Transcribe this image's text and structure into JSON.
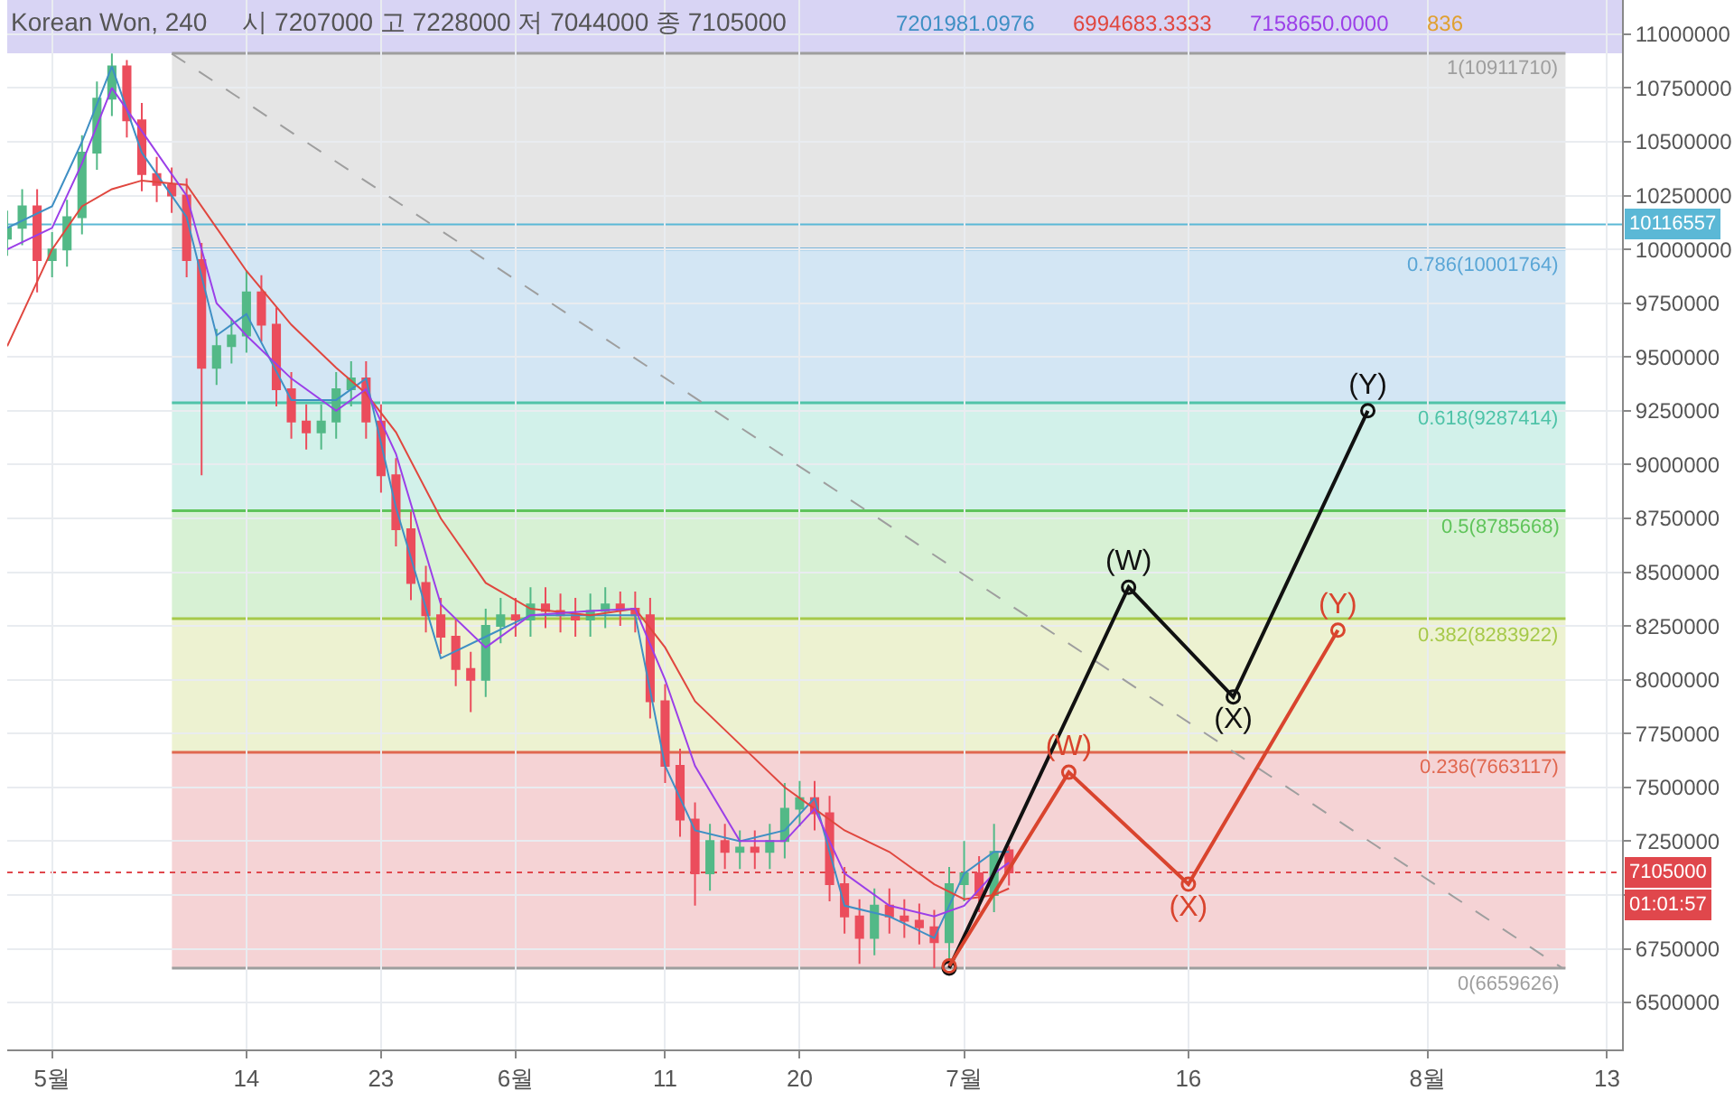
{
  "chart_data": {
    "type": "candlestick",
    "title": "Korean Won, 240",
    "subtitle": "시 7207000 고 7228000 저 7044000 종 7105000",
    "xlim": [
      "--04-28",
      "--08-14"
    ],
    "xticks": [
      {
        "value": "--05-01",
        "label": "5월"
      },
      {
        "value": "--05-14",
        "label": "14"
      },
      {
        "value": "--05-23",
        "label": "23"
      },
      {
        "value": "--06-01",
        "label": "6월"
      },
      {
        "value": "--06-11",
        "label": "11"
      },
      {
        "value": "--06-20",
        "label": "20"
      },
      {
        "value": "--07-01",
        "label": "7월"
      },
      {
        "value": "--07-16",
        "label": "16"
      },
      {
        "value": "--08-01",
        "label": "8월"
      },
      {
        "value": "--08-13",
        "label": "13"
      }
    ],
    "ylim": [
      6282000,
      11159000
    ],
    "yticks": [
      6500000,
      6750000,
      {
        "value": 7000000,
        "label": null
      },
      7250000,
      7500000,
      7750000,
      8000000,
      8250000,
      8500000,
      8750000,
      9000000,
      9250000,
      9500000,
      9750000,
      10000000,
      10250000,
      10500000,
      10750000,
      11000000
    ],
    "grid": true,
    "legend": "top",
    "marker": "circle",
    "series": [
      {
        "type": "line",
        "name": "7201981.0976",
        "color": "#3f8fc4",
        "marker": "none",
        "x": [
          "--04-28",
          "--05-01",
          "--05-03",
          "--05-05",
          "--05-07",
          "--05-10",
          "--05-12",
          "--05-14",
          "--05-17",
          "--05-20",
          "--05-22",
          "--05-24",
          "--05-27",
          "--05-30",
          "--06-02",
          "--06-06",
          "--06-09",
          "--06-11",
          "--06-13",
          "--06-16",
          "--06-19",
          "--06-21",
          "--06-23",
          "--06-26",
          "--06-29",
          "--07-01",
          "--07-03",
          "--07-04"
        ],
        "values": [
          10100000,
          10200000,
          10500000,
          10850000,
          10450000,
          10150000,
          9600000,
          9700000,
          9300000,
          9300000,
          9400000,
          8800000,
          8100000,
          8200000,
          8300000,
          8300000,
          8300000,
          7600000,
          7300000,
          7250000,
          7300000,
          7450000,
          6950000,
          6900000,
          6800000,
          7100000,
          7200000,
          7200000
        ]
      },
      {
        "type": "line",
        "name": "6994683.3333",
        "color": "#e0473f",
        "marker": "none",
        "x": [
          "--04-28",
          "--05-01",
          "--05-03",
          "--05-05",
          "--05-07",
          "--05-10",
          "--05-12",
          "--05-14",
          "--05-17",
          "--05-20",
          "--05-22",
          "--05-24",
          "--05-27",
          "--05-30",
          "--06-02",
          "--06-06",
          "--06-09",
          "--06-11",
          "--06-13",
          "--06-16",
          "--06-19",
          "--06-21",
          "--06-23",
          "--06-26",
          "--06-29",
          "--07-01",
          "--07-03",
          "--07-04"
        ],
        "values": [
          9550000,
          10000000,
          10200000,
          10280000,
          10320000,
          10300000,
          10100000,
          9900000,
          9650000,
          9450000,
          9330000,
          9150000,
          8750000,
          8450000,
          8330000,
          8300000,
          8330000,
          8150000,
          7900000,
          7700000,
          7500000,
          7400000,
          7300000,
          7200000,
          7050000,
          6980000,
          7000000,
          7030000
        ]
      },
      {
        "type": "line",
        "name": "7158650.0000",
        "color": "#9b3fe8",
        "marker": "none",
        "x": [
          "--04-28",
          "--05-01",
          "--05-03",
          "--05-05",
          "--05-07",
          "--05-10",
          "--05-12",
          "--05-14",
          "--05-17",
          "--05-20",
          "--05-22",
          "--05-24",
          "--05-27",
          "--05-30",
          "--06-02",
          "--06-06",
          "--06-09",
          "--06-11",
          "--06-13",
          "--06-16",
          "--06-19",
          "--06-21",
          "--06-23",
          "--06-26",
          "--06-29",
          "--07-01",
          "--07-03",
          "--07-04"
        ],
        "values": [
          10000000,
          10100000,
          10400000,
          10750000,
          10550000,
          10250000,
          9750000,
          9600000,
          9400000,
          9250000,
          9350000,
          9050000,
          8350000,
          8150000,
          8300000,
          8320000,
          8330000,
          8000000,
          7600000,
          7250000,
          7250000,
          7400000,
          7100000,
          6950000,
          6900000,
          6950000,
          7100000,
          7150000
        ]
      },
      {
        "type": "line",
        "color": "#9e9e9e",
        "marker": "none",
        "line_style": "dashed",
        "x": [
          "--05-09",
          "--08-10"
        ],
        "values": [
          10910000,
          6660000
        ]
      },
      {
        "type": "line",
        "color": "#111111",
        "x": [
          "--06-30",
          "--07-12",
          "--07-19",
          "--07-28"
        ],
        "values": [
          6660000,
          8430000,
          7920000,
          9250000
        ],
        "value_labels": [
          null,
          "(W)",
          "(X)",
          "(Y)"
        ]
      },
      {
        "type": "line",
        "color": "#d9442e",
        "x": [
          "--06-30",
          "--07-08",
          "--07-16",
          "--07-26"
        ],
        "values": [
          6670000,
          7570000,
          7050000,
          8230000
        ],
        "value_labels": [
          null,
          "(W)",
          "(X)",
          "(Y)"
        ]
      },
      {
        "x": [
          "--04-28",
          "--04-29",
          "--04-30",
          "--05-01",
          "--05-02",
          "--05-03",
          "--05-04",
          "--05-05",
          "--05-06",
          "--05-07",
          "--05-08",
          "--05-09",
          "--05-10",
          "--05-11",
          "--05-12",
          "--05-13",
          "--05-14",
          "--05-15",
          "--05-16",
          "--05-17",
          "--05-18",
          "--05-19",
          "--05-20",
          "--05-21",
          "--05-22",
          "--05-23",
          "--05-24",
          "--05-25",
          "--05-26",
          "--05-27",
          "--05-28",
          "--05-29",
          "--05-30",
          "--05-31",
          "--06-01",
          "--06-02",
          "--06-03",
          "--06-04",
          "--06-05",
          "--06-06",
          "--06-07",
          "--06-08",
          "--06-09",
          "--06-10",
          "--06-11",
          "--06-12",
          "--06-13",
          "--06-14",
          "--06-15",
          "--06-16",
          "--06-17",
          "--06-18",
          "--06-19",
          "--06-20",
          "--06-21",
          "--06-22",
          "--06-23",
          "--06-24",
          "--06-25",
          "--06-26",
          "--06-27",
          "--06-28",
          "--06-29",
          "--06-30",
          "--07-01",
          "--07-02",
          "--07-03",
          "--07-04"
        ],
        "ohlc": [
          [
            10050000,
            10180000,
            9970000,
            10100000
          ],
          [
            10100000,
            10280000,
            10020000,
            10200000
          ],
          [
            10200000,
            10280000,
            9800000,
            9950000
          ],
          [
            9950000,
            10080000,
            9870000,
            10000000
          ],
          [
            10000000,
            10230000,
            9920000,
            10150000
          ],
          [
            10150000,
            10530000,
            10070000,
            10450000
          ],
          [
            10450000,
            10780000,
            10370000,
            10700000
          ],
          [
            10700000,
            10910000,
            10620000,
            10850000
          ],
          [
            10850000,
            10880000,
            10520000,
            10600000
          ],
          [
            10600000,
            10680000,
            10270000,
            10350000
          ],
          [
            10350000,
            10430000,
            10220000,
            10300000
          ],
          [
            10300000,
            10380000,
            10170000,
            10250000
          ],
          [
            10250000,
            10330000,
            9870000,
            9950000
          ],
          [
            9950000,
            10030000,
            8950000,
            9450000
          ],
          [
            9450000,
            9630000,
            9370000,
            9550000
          ],
          [
            9550000,
            9680000,
            9470000,
            9600000
          ],
          [
            9600000,
            9900000,
            9520000,
            9800000
          ],
          [
            9800000,
            9880000,
            9570000,
            9650000
          ],
          [
            9650000,
            9730000,
            9270000,
            9350000
          ],
          [
            9350000,
            9430000,
            9120000,
            9200000
          ],
          [
            9200000,
            9280000,
            9070000,
            9150000
          ],
          [
            9150000,
            9280000,
            9070000,
            9200000
          ],
          [
            9200000,
            9430000,
            9120000,
            9350000
          ],
          [
            9350000,
            9480000,
            9270000,
            9400000
          ],
          [
            9400000,
            9480000,
            9120000,
            9200000
          ],
          [
            9200000,
            9280000,
            8870000,
            8950000
          ],
          [
            8950000,
            9030000,
            8620000,
            8700000
          ],
          [
            8700000,
            8780000,
            8370000,
            8450000
          ],
          [
            8450000,
            8530000,
            8220000,
            8300000
          ],
          [
            8300000,
            8380000,
            8120000,
            8200000
          ],
          [
            8200000,
            8280000,
            7970000,
            8050000
          ],
          [
            8050000,
            8130000,
            7850000,
            8000000
          ],
          [
            8000000,
            8330000,
            7920000,
            8250000
          ],
          [
            8250000,
            8380000,
            8170000,
            8300000
          ],
          [
            8300000,
            8380000,
            8200000,
            8280000
          ],
          [
            8280000,
            8430000,
            8200000,
            8350000
          ],
          [
            8350000,
            8430000,
            8240000,
            8320000
          ],
          [
            8320000,
            8400000,
            8220000,
            8300000
          ],
          [
            8300000,
            8380000,
            8200000,
            8280000
          ],
          [
            8280000,
            8400000,
            8200000,
            8320000
          ],
          [
            8320000,
            8430000,
            8240000,
            8350000
          ],
          [
            8350000,
            8410000,
            8250000,
            8330000
          ],
          [
            8330000,
            8410000,
            8220000,
            8300000
          ],
          [
            8300000,
            8380000,
            7820000,
            7900000
          ],
          [
            7900000,
            7980000,
            7520000,
            7600000
          ],
          [
            7600000,
            7680000,
            7270000,
            7350000
          ],
          [
            7350000,
            7430000,
            6950000,
            7100000
          ],
          [
            7100000,
            7330000,
            7020000,
            7250000
          ],
          [
            7250000,
            7330000,
            7120000,
            7200000
          ],
          [
            7200000,
            7300000,
            7120000,
            7220000
          ],
          [
            7220000,
            7300000,
            7120000,
            7200000
          ],
          [
            7200000,
            7330000,
            7120000,
            7250000
          ],
          [
            7250000,
            7520000,
            7170000,
            7400000
          ],
          [
            7400000,
            7530000,
            7320000,
            7450000
          ],
          [
            7450000,
            7530000,
            7300000,
            7380000
          ],
          [
            7380000,
            7460000,
            6970000,
            7050000
          ],
          [
            7050000,
            7130000,
            6820000,
            6900000
          ],
          [
            6900000,
            6980000,
            6680000,
            6800000
          ],
          [
            6800000,
            7030000,
            6720000,
            6950000
          ],
          [
            6950000,
            7030000,
            6820000,
            6900000
          ],
          [
            6900000,
            6980000,
            6800000,
            6880000
          ],
          [
            6880000,
            6960000,
            6770000,
            6850000
          ],
          [
            6850000,
            6930000,
            6660000,
            6780000
          ],
          [
            6780000,
            7130000,
            6700000,
            7050000
          ],
          [
            7050000,
            7250000,
            6970000,
            7100000
          ],
          [
            7100000,
            7180000,
            6920000,
            7000000
          ],
          [
            7000000,
            7330000,
            6920000,
            7200000
          ],
          [
            7207000,
            7228000,
            7044000,
            7105000
          ]
        ],
        "colors": [
          "#53b987",
          "#53b987",
          "#eb4d5c",
          "#53b987",
          "#53b987",
          "#53b987",
          "#53b987",
          "#53b987",
          "#eb4d5c",
          "#eb4d5c",
          "#eb4d5c",
          "#eb4d5c",
          "#eb4d5c",
          "#eb4d5c",
          "#53b987",
          "#53b987",
          "#53b987",
          "#eb4d5c",
          "#eb4d5c",
          "#eb4d5c",
          "#eb4d5c",
          "#53b987",
          "#53b987",
          "#53b987",
          "#eb4d5c",
          "#eb4d5c",
          "#eb4d5c",
          "#eb4d5c",
          "#eb4d5c",
          "#eb4d5c",
          "#eb4d5c",
          "#eb4d5c",
          "#53b987",
          "#53b987",
          "#eb4d5c",
          "#53b987",
          "#eb4d5c",
          "#eb4d5c",
          "#eb4d5c",
          "#53b987",
          "#53b987",
          "#eb4d5c",
          "#eb4d5c",
          "#eb4d5c",
          "#eb4d5c",
          "#eb4d5c",
          "#eb4d5c",
          "#53b987",
          "#eb4d5c",
          "#53b987",
          "#eb4d5c",
          "#53b987",
          "#53b987",
          "#53b987",
          "#eb4d5c",
          "#eb4d5c",
          "#eb4d5c",
          "#eb4d5c",
          "#53b987",
          "#eb4d5c",
          "#eb4d5c",
          "#eb4d5c",
          "#eb4d5c",
          "#53b987",
          "#53b987",
          "#eb4d5c",
          "#53b987",
          "#eb4d5c"
        ]
      }
    ],
    "bands": [
      {
        "axis": "y",
        "from": 10911710,
        "to": 11159000,
        "color": "#d8d4f4"
      },
      {
        "axis": "y",
        "from": 10001764,
        "to": 10911710,
        "color": "#e5e5e5"
      },
      {
        "axis": "y",
        "from": 9287414,
        "to": 10001764,
        "color": "#d3e6f4"
      },
      {
        "axis": "y",
        "from": 8785668,
        "to": 9287414,
        "color": "#d2f1ea"
      },
      {
        "axis": "y",
        "from": 8283922,
        "to": 8785668,
        "color": "#d7f1d4"
      },
      {
        "axis": "y",
        "from": 7663117,
        "to": 8283922,
        "color": "#edf2d1"
      },
      {
        "axis": "y",
        "from": 6659626,
        "to": 7663117,
        "color": "#f5d3d5"
      }
    ],
    "ref_lines": [
      {
        "axis": "y",
        "value": 10911710,
        "label": "1(10911710)",
        "color": "#9e9e9e"
      },
      {
        "axis": "y",
        "value": 10001764,
        "label": "0.786(10001764)",
        "color": "#5aa6d6"
      },
      {
        "axis": "y",
        "value": 9287414,
        "label": "0.618(9287414)",
        "color": "#4fc3a8"
      },
      {
        "axis": "y",
        "value": 8785668,
        "label": "0.5(8785668)",
        "color": "#5fc45a"
      },
      {
        "axis": "y",
        "value": 8283922,
        "label": "0.382(8283922)",
        "color": "#a6c94a"
      },
      {
        "axis": "y",
        "value": 7663117,
        "label": "0.236(7663117)",
        "color": "#e0674f"
      },
      {
        "axis": "y",
        "value": 6659626,
        "label": "0(6659626)",
        "color": "#9e9e9e"
      },
      {
        "axis": "y",
        "value": 10116557,
        "label": "10116557",
        "color": "#5bb8d6"
      },
      {
        "axis": "y",
        "value": 7105000,
        "label": "7105000",
        "color": "#e0474c",
        "line_style": "dotted"
      }
    ],
    "annotations": [
      "836",
      "01:01:57"
    ]
  }
}
